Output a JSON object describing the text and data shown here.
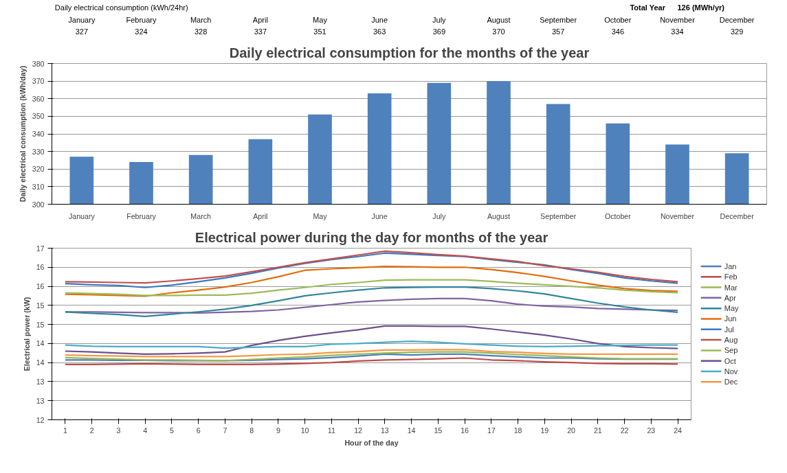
{
  "chart_data": [
    {
      "type": "bar",
      "title": "Daily electrical consumption for the months of the year",
      "ylabel": "Daily electrical consumption (kWh/day)",
      "categories": [
        "January",
        "February",
        "March",
        "April",
        "May",
        "June",
        "July",
        "August",
        "September",
        "October",
        "November",
        "December"
      ],
      "values": [
        327,
        324,
        328,
        337,
        351,
        363,
        369,
        370,
        357,
        346,
        334,
        329
      ],
      "color": "#4f81bd",
      "ylim": [
        300,
        380
      ],
      "yticks": [
        300,
        310,
        320,
        330,
        340,
        350,
        360,
        370,
        380
      ],
      "grid": "y",
      "data_labels": true,
      "annotations": [
        "Daily electrical consumption (kWh/24hr)",
        "Total Year",
        "126 (MWh/yr)"
      ]
    },
    {
      "type": "line",
      "title": "Electrical power during the day for months of the year",
      "xlabel": "Hour of the day",
      "ylabel": "Electrical power (kW)",
      "x": [
        1,
        2,
        3,
        4,
        5,
        6,
        7,
        8,
        9,
        10,
        11,
        12,
        13,
        14,
        15,
        16,
        17,
        18,
        19,
        20,
        21,
        22,
        23,
        24
      ],
      "xlim": [
        0.5,
        24.5
      ],
      "xticks": [
        1,
        2,
        3,
        4,
        5,
        6,
        7,
        8,
        9,
        10,
        11,
        12,
        13,
        14,
        15,
        16,
        17,
        18,
        19,
        20,
        21,
        22,
        23,
        24
      ],
      "ylim": [
        12,
        16.5
      ],
      "yticks": [
        12,
        {
          "value": 12.5,
          "label": "13"
        },
        13,
        {
          "value": 13.5,
          "label": "14"
        },
        14,
        {
          "value": 14.5,
          "label": "15"
        },
        15,
        {
          "value": 15.5,
          "label": "16"
        },
        16,
        {
          "value": 16.5,
          "label": "17"
        }
      ],
      "grid": "y",
      "legend": "right",
      "marker": "none",
      "line_style": "solid",
      "series": [
        {
          "name": "Jan",
          "color": "#4a7ebb",
          "values": [
            13.57,
            13.57,
            13.56,
            13.56,
            13.55,
            13.55,
            13.55,
            13.56,
            13.58,
            13.6,
            13.63,
            13.67,
            13.72,
            13.7,
            13.72,
            13.72,
            13.68,
            13.65,
            13.62,
            13.62,
            13.6,
            13.59,
            13.59,
            13.59
          ]
        },
        {
          "name": "Feb",
          "color": "#be4b48",
          "values": [
            13.45,
            13.45,
            13.46,
            13.47,
            13.46,
            13.45,
            13.45,
            13.45,
            13.46,
            13.48,
            13.5,
            13.54,
            13.57,
            13.58,
            13.6,
            13.62,
            13.57,
            13.55,
            13.52,
            13.5,
            13.48,
            13.47,
            13.47,
            13.46
          ]
        },
        {
          "name": "Mar",
          "color": "#98b954",
          "values": [
            13.63,
            13.61,
            13.59,
            13.57,
            13.57,
            13.56,
            13.55,
            13.58,
            13.62,
            13.65,
            13.69,
            13.72,
            13.75,
            13.77,
            13.78,
            13.78,
            13.75,
            13.71,
            13.68,
            13.65,
            13.62,
            13.6,
            13.6,
            13.6
          ]
        },
        {
          "name": "Apr",
          "color": "#8064a2",
          "values": [
            14.83,
            14.83,
            14.82,
            14.81,
            14.81,
            14.8,
            14.82,
            14.84,
            14.88,
            14.95,
            15.02,
            15.09,
            15.13,
            15.16,
            15.18,
            15.18,
            15.12,
            15.03,
            14.98,
            14.96,
            14.92,
            14.9,
            14.88,
            14.87
          ]
        },
        {
          "name": "May",
          "color": "#31859c",
          "values": [
            14.83,
            14.79,
            14.76,
            14.71,
            14.77,
            14.83,
            14.9,
            15.0,
            15.12,
            15.25,
            15.33,
            15.4,
            15.46,
            15.47,
            15.48,
            15.48,
            15.44,
            15.38,
            15.3,
            15.18,
            15.06,
            14.96,
            14.88,
            14.82
          ]
        },
        {
          "name": "Jun",
          "color": "#e46c0a",
          "values": [
            15.29,
            15.28,
            15.26,
            15.24,
            15.33,
            15.4,
            15.48,
            15.6,
            15.75,
            15.92,
            15.96,
            15.99,
            16.02,
            16.01,
            16.0,
            16.0,
            15.94,
            15.86,
            15.76,
            15.64,
            15.53,
            15.44,
            15.39,
            15.37
          ]
        },
        {
          "name": "Jul",
          "color": "#3c78c0",
          "values": [
            15.57,
            15.54,
            15.52,
            15.47,
            15.53,
            15.62,
            15.72,
            15.84,
            15.98,
            16.1,
            16.2,
            16.28,
            16.37,
            16.34,
            16.31,
            16.28,
            16.2,
            16.13,
            16.06,
            15.94,
            15.84,
            15.72,
            15.64,
            15.58
          ]
        },
        {
          "name": "Aug",
          "color": "#c0504d",
          "values": [
            15.62,
            15.61,
            15.6,
            15.59,
            15.64,
            15.7,
            15.77,
            15.88,
            16.0,
            16.12,
            16.22,
            16.32,
            16.42,
            16.38,
            16.33,
            16.29,
            16.22,
            16.15,
            16.04,
            15.96,
            15.87,
            15.76,
            15.68,
            15.62
          ]
        },
        {
          "name": "Sep",
          "color": "#9bbb59",
          "values": [
            15.33,
            15.31,
            15.29,
            15.26,
            15.26,
            15.27,
            15.27,
            15.32,
            15.4,
            15.47,
            15.55,
            15.6,
            15.66,
            15.67,
            15.67,
            15.67,
            15.63,
            15.58,
            15.54,
            15.5,
            15.46,
            15.4,
            15.36,
            15.33
          ]
        },
        {
          "name": "Oct",
          "color": "#6b4f90",
          "values": [
            13.8,
            13.78,
            13.75,
            13.72,
            13.73,
            13.75,
            13.78,
            13.95,
            14.08,
            14.19,
            14.28,
            14.36,
            14.46,
            14.46,
            14.45,
            14.45,
            14.38,
            14.3,
            14.22,
            14.12,
            14.0,
            13.92,
            13.89,
            13.87
          ]
        },
        {
          "name": "Nov",
          "color": "#4bacc6",
          "values": [
            13.96,
            13.93,
            13.92,
            13.92,
            13.92,
            13.92,
            13.88,
            13.9,
            13.92,
            13.92,
            13.98,
            14.0,
            14.03,
            14.06,
            14.03,
            13.99,
            13.96,
            13.93,
            13.92,
            13.93,
            13.94,
            13.95,
            13.96,
            13.96
          ]
        },
        {
          "name": "Dec",
          "color": "#f79646",
          "values": [
            13.7,
            13.68,
            13.67,
            13.66,
            13.66,
            13.66,
            13.66,
            13.68,
            13.71,
            13.72,
            13.76,
            13.79,
            13.83,
            13.83,
            13.84,
            13.84,
            13.79,
            13.77,
            13.74,
            13.72,
            13.72,
            13.72,
            13.72,
            13.72
          ]
        }
      ]
    }
  ]
}
